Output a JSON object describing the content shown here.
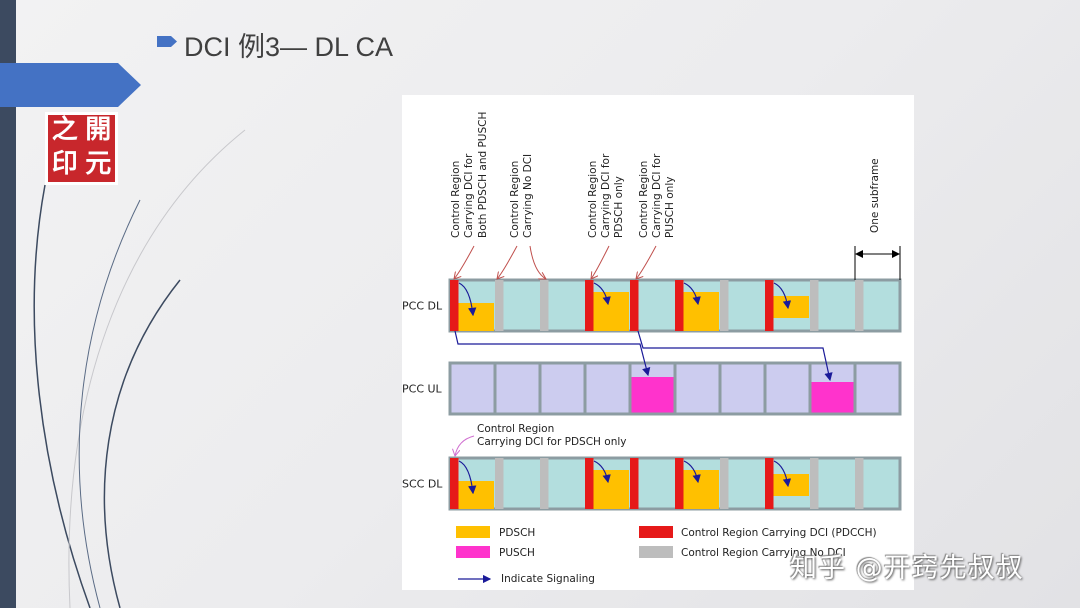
{
  "slide": {
    "title": "DCI 例3— DL CA",
    "seal_text": [
      "之",
      "開",
      "印",
      "元"
    ],
    "watermark": "知乎 @开窍先叔叔"
  },
  "diagram": {
    "rows": [
      {
        "label": "PCC DL",
        "type": "dl",
        "control": [
          "dci",
          "none",
          "none",
          "dci",
          "dci",
          "dci",
          "none",
          "dci",
          "none",
          "none"
        ],
        "pdsch": [
          true,
          false,
          false,
          true,
          false,
          true,
          false,
          true,
          false,
          false
        ]
      },
      {
        "label": "PCC UL",
        "type": "ul",
        "pusch": [
          false,
          false,
          false,
          false,
          true,
          false,
          false,
          false,
          true,
          false
        ]
      },
      {
        "label": "SCC DL",
        "type": "dl",
        "control": [
          "dci",
          "none",
          "none",
          "dci",
          "dci",
          "dci",
          "none",
          "dci",
          "none",
          "none"
        ],
        "pdsch": [
          true,
          false,
          false,
          true,
          false,
          true,
          false,
          true,
          false,
          false
        ]
      }
    ],
    "annotations": [
      {
        "lines": [
          "Control Region",
          "Carrying DCI for",
          "Both PDSCH and PUSCH"
        ]
      },
      {
        "lines": [
          "Control Region",
          "Carrying No DCI"
        ]
      },
      {
        "lines": [
          "Control Region",
          "Carrying DCI for",
          "PDSCH only"
        ]
      },
      {
        "lines": [
          "Control Region",
          "Carrying DCI for",
          "PUSCH only"
        ]
      },
      {
        "lines": [
          "One subframe"
        ]
      }
    ],
    "scc_annotation": [
      "Control Region",
      "Carrying DCI for PDSCH only"
    ],
    "legend": {
      "pdsch": "PDSCH",
      "pusch": "PUSCH",
      "pdcch": "Control Region Carrying DCI (PDCCH)",
      "no_dci": "Control Region Carrying No DCI",
      "signaling": "Indicate Signaling"
    },
    "colors": {
      "subframe_dl": "#b3dede",
      "subframe_ul": "#ccccef",
      "border": "#8c9ca2",
      "pdsch": "#ffc000",
      "pusch": "#ff33cc",
      "dci": "#e61919",
      "no_dci": "#bdbdbd",
      "signal": "#1a1a99",
      "callout": "#c0504d"
    }
  }
}
